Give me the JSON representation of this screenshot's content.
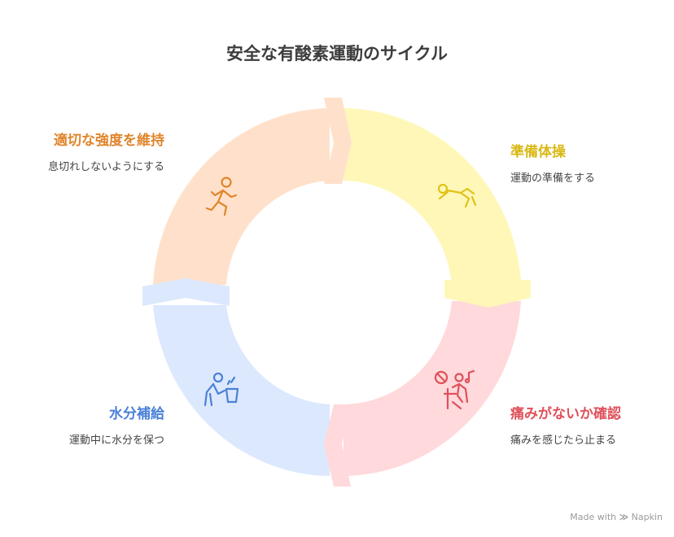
{
  "title": "安全な有酸素運動のサイクル",
  "steps": [
    {
      "id": "warmup",
      "title": "準備体操",
      "desc": "運動の準備をする",
      "color": "#E0C21A",
      "fill": "#FFF7B8",
      "icon": "stretching-person-icon"
    },
    {
      "id": "check",
      "title": "痛みがないか確認",
      "desc": "痛みを感じたら止まる",
      "color": "#E0505A",
      "fill": "#FFD9DB",
      "icon": "pain-check-person-icon"
    },
    {
      "id": "hydrate",
      "title": "水分補給",
      "desc": "運動中に水分を保つ",
      "color": "#4A80D8",
      "fill": "#DCE8FD",
      "icon": "drinking-person-icon"
    },
    {
      "id": "intensity",
      "title": "適切な強度を維持",
      "desc": "息切れしないようにする",
      "color": "#E0852C",
      "fill": "#FFE1CB",
      "icon": "running-person-icon"
    }
  ],
  "footer": {
    "prefix": "Made with",
    "brand": "Napkin"
  }
}
